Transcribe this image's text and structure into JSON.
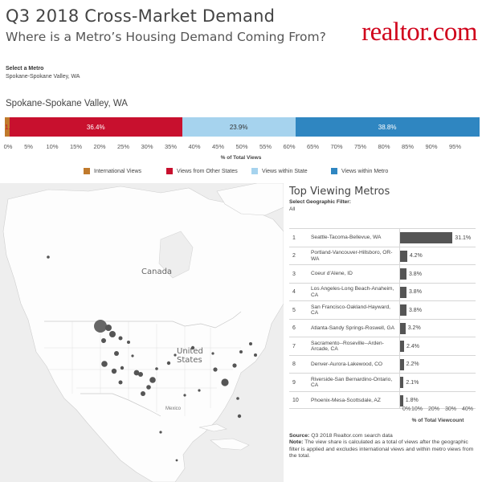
{
  "header": {
    "title": "Q3 2018 Cross-Market Demand",
    "subtitle": "Where is a Metro’s Housing Demand Coming From?",
    "logo_text": "realtor.com",
    "logo_color": "#d0021b"
  },
  "metro_selector": {
    "label": "Select a Metro",
    "value": "Spokane-Spokane Valley, WA"
  },
  "demand_bar": {
    "title": "Spokane-Spokane Valley, WA",
    "segments": [
      {
        "name": "International Views",
        "label": "1.0%",
        "value": 1.0,
        "color": "#c07a2c"
      },
      {
        "name": "Views from Other States",
        "label": "36.4%",
        "value": 36.4,
        "color": "#c8102e"
      },
      {
        "name": "Views within State",
        "label": "23.9%",
        "value": 23.9,
        "color": "#a6d3ee"
      },
      {
        "name": "Views within Metro",
        "label": "38.8%",
        "value": 38.8,
        "color": "#2f86c1"
      }
    ],
    "axis_ticks": [
      "0%",
      "5%",
      "10%",
      "15%",
      "20%",
      "25%",
      "30%",
      "35%",
      "40%",
      "45%",
      "50%",
      "55%",
      "60%",
      "65%",
      "70%",
      "75%",
      "80%",
      "85%",
      "90%",
      "95%"
    ],
    "axis_title": "% of Total Views"
  },
  "legend": {
    "items": [
      {
        "label": "International Views",
        "color": "#c07a2c"
      },
      {
        "label": "Views from Other States",
        "color": "#c8102e"
      },
      {
        "label": "Views within State",
        "color": "#a6d3ee"
      },
      {
        "label": "Views within Metro",
        "color": "#2f86c1"
      }
    ]
  },
  "map": {
    "labels": {
      "canada": "Canada",
      "united_states_1": "United",
      "united_states_2": "States",
      "mexico": "Mexico"
    }
  },
  "top_metros": {
    "title": "Top Viewing Metros",
    "filter_label": "Select Geographic Filter:",
    "filter_value": "All",
    "rows": [
      {
        "rank": "1",
        "name": "Seattle-Tacoma-Bellevue, WA",
        "value": 31.1,
        "label": "31.1%"
      },
      {
        "rank": "2",
        "name": "Portland-Vancouver-Hillsboro, OR-WA",
        "value": 4.2,
        "label": "4.2%"
      },
      {
        "rank": "3",
        "name": "Coeur d'Alene, ID",
        "value": 3.8,
        "label": "3.8%"
      },
      {
        "rank": "4",
        "name": "Los Angeles-Long Beach-Anaheim, CA",
        "value": 3.8,
        "label": "3.8%"
      },
      {
        "rank": "5",
        "name": "San Francisco-Oakland-Hayward, CA",
        "value": 3.8,
        "label": "3.8%"
      },
      {
        "rank": "6",
        "name": "Atlanta-Sandy Springs-Roswell, GA",
        "value": 3.2,
        "label": "3.2%"
      },
      {
        "rank": "7",
        "name": "Sacramento--Roseville--Arden-Arcade, CA",
        "value": 2.4,
        "label": "2.4%"
      },
      {
        "rank": "8",
        "name": "Denver-Aurora-Lakewood, CO",
        "value": 2.2,
        "label": "2.2%"
      },
      {
        "rank": "9",
        "name": "Riverside-San Bernardino-Ontario, CA",
        "value": 2.1,
        "label": "2.1%"
      },
      {
        "rank": "10",
        "name": "Phoenix-Mesa-Scottsdale, AZ",
        "value": 1.8,
        "label": "1.8%"
      }
    ],
    "axis_ticks": [
      "0%",
      "10%",
      "20%",
      "30%",
      "40%"
    ],
    "axis_title": "% of Total Viewcount",
    "bar_color": "#555555"
  },
  "footer": {
    "source_label": "Source:",
    "source_text": "Q3 2018 Realtor.com search data",
    "note_label": "Note:",
    "note_text": "The view share is calculated as a total of views after the geographic filter is applied and excludes international views and within metro views from the total."
  },
  "chart_data": {
    "type": "bar",
    "orientation": "horizontal",
    "categories": [
      "Seattle-Tacoma-Bellevue, WA",
      "Portland-Vancouver-Hillsboro, OR-WA",
      "Coeur d'Alene, ID",
      "Los Angeles-Long Beach-Anaheim, CA",
      "San Francisco-Oakland-Hayward, CA",
      "Atlanta-Sandy Springs-Roswell, GA",
      "Sacramento--Roseville--Arden-Arcade, CA",
      "Denver-Aurora-Lakewood, CO",
      "Riverside-San Bernardino-Ontario, CA",
      "Phoenix-Mesa-Scottsdale, AZ"
    ],
    "values": [
      31.1,
      4.2,
      3.8,
      3.8,
      3.8,
      3.2,
      2.4,
      2.2,
      2.1,
      1.8
    ],
    "xlabel": "% of Total Viewcount",
    "xlim": [
      0,
      40
    ],
    "stacked_bar": {
      "categories": [
        "International Views",
        "Views from Other States",
        "Views within State",
        "Views within Metro"
      ],
      "values": [
        1.0,
        36.4,
        23.9,
        38.8
      ],
      "xlabel": "% of Total Views",
      "xlim": [
        0,
        100
      ]
    }
  }
}
